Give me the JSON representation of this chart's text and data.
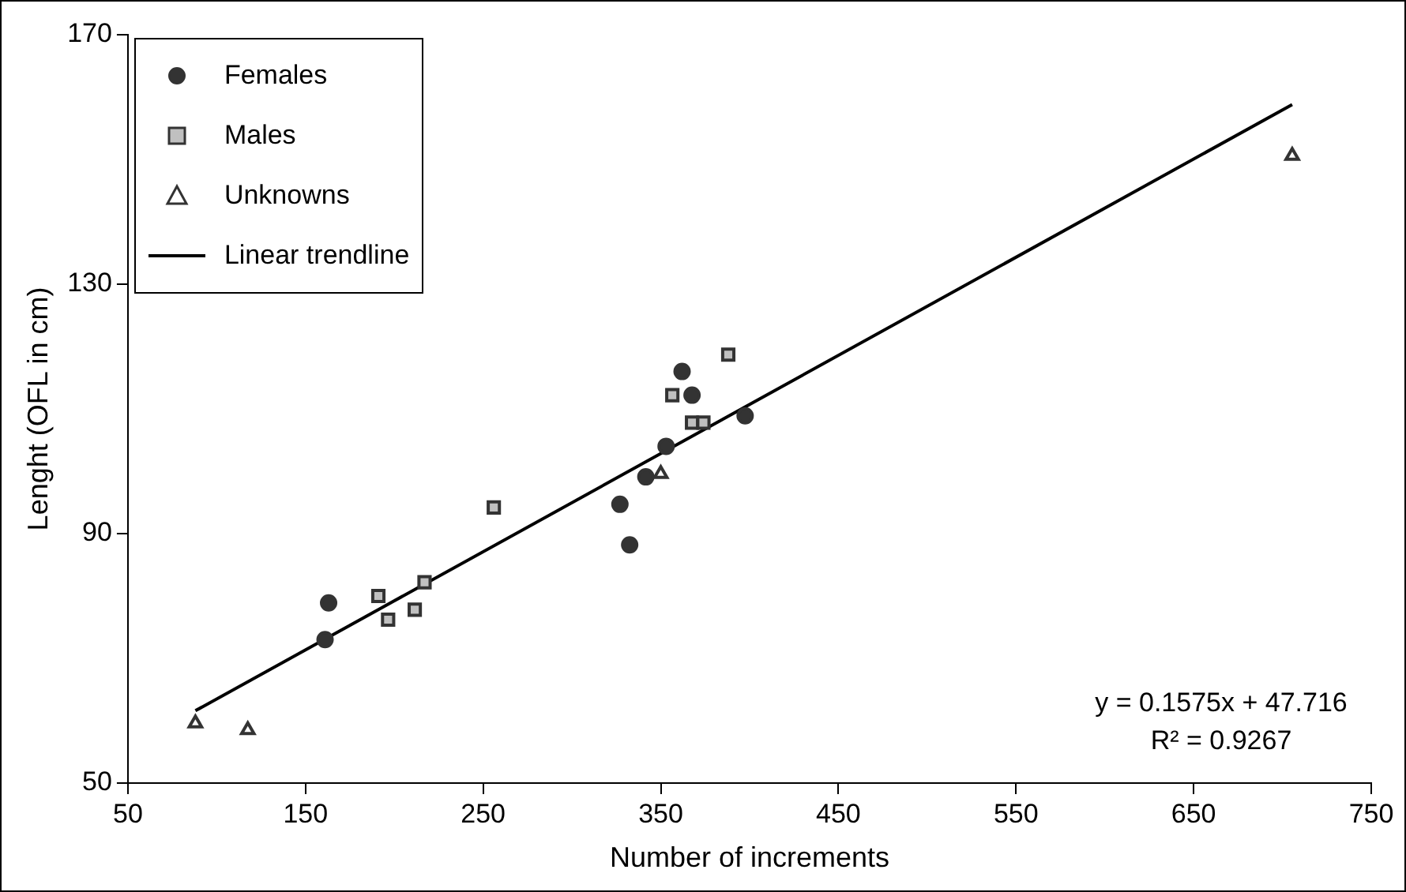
{
  "chart_data": {
    "type": "scatter",
    "xlabel": "Number of increments",
    "ylabel": "Lenght (OFL in cm)",
    "xlim": [
      50,
      750
    ],
    "xticks": [
      50,
      150,
      250,
      350,
      450,
      550,
      650,
      750
    ],
    "ylim": [
      50,
      170
    ],
    "yticks": [
      50,
      90,
      130,
      170
    ],
    "grid": false,
    "legend": "top left",
    "series": [
      {
        "name": "Females",
        "type": "scatter",
        "marker": "circle",
        "color": "#333333",
        "x": [
          163,
          161,
          327,
          332.5,
          341.6,
          353,
          362,
          367.6,
          397.5
        ],
        "values": [
          78.9,
          73,
          94.7,
          88.2,
          99.1,
          104,
          116,
          112.2,
          108.9
        ]
      },
      {
        "name": "Males",
        "type": "scatter",
        "marker": "square",
        "color": "#c0c0c0",
        "x": [
          191,
          196.5,
          211.5,
          217,
          256,
          356.5,
          367.6,
          374,
          388
        ],
        "values": [
          80,
          76.2,
          77.8,
          82.2,
          94.2,
          112.2,
          107.8,
          107.8,
          118.7
        ]
      },
      {
        "name": "Unknowns",
        "type": "scatter",
        "marker": "triangle",
        "color": "#ffffff",
        "x": [
          88,
          117.5,
          350,
          705.5
        ],
        "values": [
          59.6,
          58.5,
          99.6,
          150.6
        ]
      },
      {
        "name": "Linear trendline",
        "type": "line",
        "marker": "none",
        "line_style": "solid",
        "color": "#000000",
        "x": [
          88,
          705.5
        ],
        "values": [
          61.6,
          158.8
        ]
      }
    ],
    "annotations": [
      "y = 0.1575x + 47.716",
      "R² = 0.9267"
    ]
  }
}
